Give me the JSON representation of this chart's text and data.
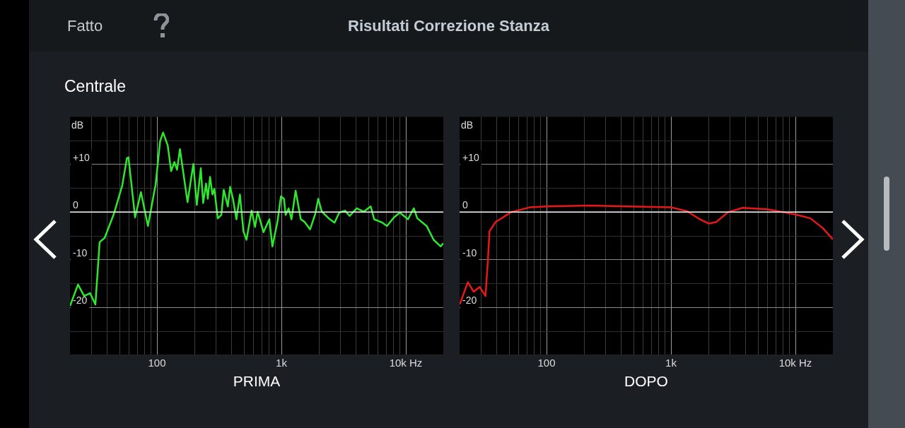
{
  "chart_data": [
    {
      "type": "line",
      "title": "Risultati Correzione Stanza",
      "subtitle": "Centrale",
      "annotations": [
        "Fatto"
      ],
      "xlabel": "PRIMA",
      "ylabel": "dB",
      "grid": true,
      "legend": false,
      "log": "x",
      "xlim": [
        20,
        20000
      ],
      "ylim": [
        -30,
        20
      ],
      "xticks": [
        {
          "value": 30,
          "label": null
        },
        {
          "value": 40,
          "label": null
        },
        {
          "value": 50,
          "label": null
        },
        {
          "value": 60,
          "label": null
        },
        {
          "value": 70,
          "label": null
        },
        {
          "value": 80,
          "label": null
        },
        {
          "value": 90,
          "label": null
        },
        100,
        {
          "value": 200,
          "label": null
        },
        {
          "value": 300,
          "label": null
        },
        {
          "value": 400,
          "label": null
        },
        {
          "value": 500,
          "label": null
        },
        {
          "value": 600,
          "label": null
        },
        {
          "value": 700,
          "label": null
        },
        {
          "value": 800,
          "label": null
        },
        {
          "value": 900,
          "label": null
        },
        {
          "value": 1000,
          "label": "1k"
        },
        {
          "value": 2000,
          "label": null
        },
        {
          "value": 3000,
          "label": null
        },
        {
          "value": 4000,
          "label": null
        },
        {
          "value": 5000,
          "label": null
        },
        {
          "value": 6000,
          "label": null
        },
        {
          "value": 7000,
          "label": null
        },
        {
          "value": 8000,
          "label": null
        },
        {
          "value": 9000,
          "label": null
        },
        {
          "value": 10000,
          "label": "10k Hz"
        }
      ],
      "yticks": [
        {
          "value": -25,
          "label": null
        },
        -20,
        {
          "value": -15,
          "label": null
        },
        -10,
        {
          "value": -5,
          "label": null
        },
        0,
        {
          "value": 5,
          "label": null
        },
        {
          "value": 10,
          "label": "+10"
        },
        {
          "value": 15,
          "label": null
        }
      ],
      "ref_lines": [
        {
          "axis": "y",
          "value": 0,
          "color": "#ffffff"
        }
      ],
      "series": [
        {
          "color": "#2ee82e",
          "x": [
            20,
            23.2,
            26,
            29,
            32,
            34.6,
            38,
            45,
            52.6,
            57.3,
            59,
            66.7,
            74.3,
            84.6,
            97.5,
            106,
            112,
            122,
            130,
            138,
            145,
            153,
            176,
            196,
            209,
            225,
            235,
            248,
            256,
            267,
            279,
            289,
            308,
            329,
            344,
            371,
            387,
            408,
            435,
            464,
            495,
            524,
            576,
            614,
            644,
            718,
            800,
            846,
            930,
            991,
            1049,
            1081,
            1143,
            1205,
            1301,
            1432,
            1528,
            1700,
            1870,
            1977,
            2110,
            2400,
            2673,
            2917,
            3246,
            3539,
            4029,
            4585,
            5218,
            5565,
            6471,
            7050,
            8035,
            8940,
            10400,
            11590,
            12360,
            14690,
            16720,
            19030,
            20000
          ],
          "values": [
            -19.7,
            -15.2,
            -17.6,
            -17,
            -19.4,
            -6.3,
            -5.4,
            -0.4,
            5.6,
            11.3,
            11.5,
            -1.1,
            4.2,
            -2.9,
            5.8,
            14.9,
            16.7,
            14,
            8.6,
            10.5,
            8.9,
            13.2,
            2.1,
            10.1,
            1.5,
            9.2,
            1.9,
            6,
            2.8,
            7.4,
            3.7,
            4.9,
            -1.3,
            -0.6,
            4.7,
            1.2,
            5.3,
            2.8,
            -1.5,
            3.7,
            -4,
            -5.8,
            0.3,
            -3.1,
            0.1,
            -4.2,
            -1.5,
            -7.2,
            -2,
            3.3,
            2.8,
            -0.6,
            0.8,
            -1.5,
            4.5,
            -1.5,
            -2,
            -3.6,
            -0.4,
            2.8,
            0.1,
            -1.3,
            -2.2,
            -0.1,
            0.3,
            -0.8,
            0.8,
            0.1,
            1.2,
            -1.5,
            -2.2,
            -2.9,
            -1.1,
            -0.1,
            -1.5,
            0.8,
            -1.3,
            -2.9,
            -5.8,
            -7.2,
            -6.5
          ]
        }
      ]
    },
    {
      "type": "line",
      "xlabel": "DOPO",
      "ylabel": "dB",
      "grid": true,
      "legend": false,
      "log": "x",
      "xlim": [
        20,
        20000
      ],
      "ylim": [
        -30,
        20
      ],
      "xticks": [
        {
          "value": 30,
          "label": null
        },
        {
          "value": 40,
          "label": null
        },
        {
          "value": 50,
          "label": null
        },
        {
          "value": 60,
          "label": null
        },
        {
          "value": 70,
          "label": null
        },
        {
          "value": 80,
          "label": null
        },
        {
          "value": 90,
          "label": null
        },
        100,
        {
          "value": 200,
          "label": null
        },
        {
          "value": 300,
          "label": null
        },
        {
          "value": 400,
          "label": null
        },
        {
          "value": 500,
          "label": null
        },
        {
          "value": 600,
          "label": null
        },
        {
          "value": 700,
          "label": null
        },
        {
          "value": 800,
          "label": null
        },
        {
          "value": 900,
          "label": null
        },
        {
          "value": 1000,
          "label": "1k"
        },
        {
          "value": 2000,
          "label": null
        },
        {
          "value": 3000,
          "label": null
        },
        {
          "value": 4000,
          "label": null
        },
        {
          "value": 5000,
          "label": null
        },
        {
          "value": 6000,
          "label": null
        },
        {
          "value": 7000,
          "label": null
        },
        {
          "value": 8000,
          "label": null
        },
        {
          "value": 9000,
          "label": null
        },
        {
          "value": 10000,
          "label": "10k Hz"
        }
      ],
      "yticks": [
        {
          "value": -25,
          "label": null
        },
        -20,
        {
          "value": -15,
          "label": null
        },
        -10,
        {
          "value": -5,
          "label": null
        },
        0,
        {
          "value": 5,
          "label": null
        },
        {
          "value": 10,
          "label": "+10"
        },
        {
          "value": 15,
          "label": null
        }
      ],
      "ref_lines": [
        {
          "axis": "y",
          "value": 0,
          "color": "#ffffff"
        }
      ],
      "series": [
        {
          "color": "#e81818",
          "x": [
            20.1,
            23.3,
            26,
            29,
            32.3,
            33.8,
            34.8,
            38.9,
            52,
            73,
            100,
            224,
            439,
            1004,
            1343,
            1682,
            2014,
            2302,
            2879,
            3767,
            5902,
            10090,
            13200,
            16520,
            20000
          ],
          "values": [
            -19.3,
            -14.7,
            -16.7,
            -15.7,
            -17.6,
            -10,
            -4,
            -2.1,
            0,
            1,
            1.2,
            1.4,
            1.2,
            1,
            0.2,
            -1.4,
            -2.4,
            -2.1,
            0,
            0.9,
            0.6,
            -0.5,
            -1.3,
            -3.3,
            -5.7
          ]
        }
      ]
    }
  ]
}
